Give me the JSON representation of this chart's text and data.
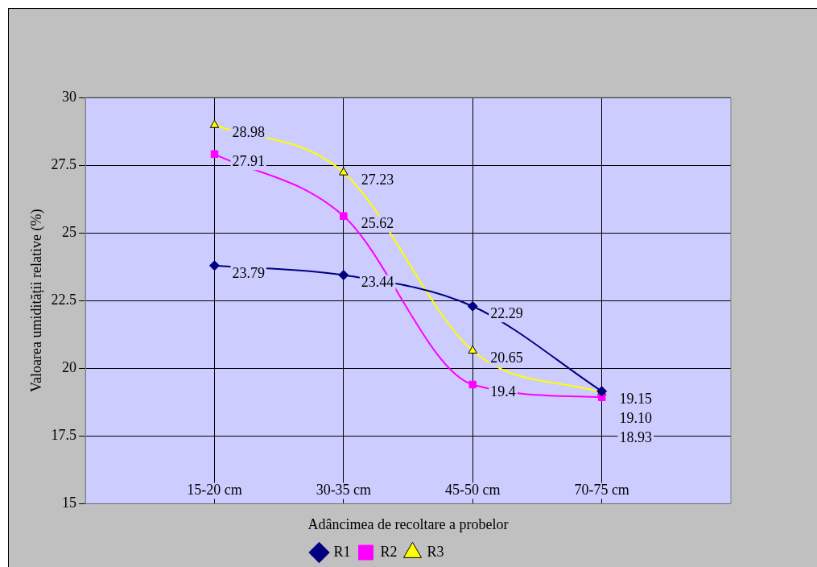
{
  "chart_data": {
    "type": "line",
    "xlabel": "Adâncimea de recoltare a probelor",
    "ylabel": "Valoarea umidității relative (%)",
    "categories": [
      "15-20 cm",
      "30-35 cm",
      "45-50 cm",
      "70-75 cm"
    ],
    "series": [
      {
        "name": "R1",
        "color": "#000080",
        "marker": "diamond",
        "values": [
          23.79,
          23.44,
          22.29,
          19.15
        ],
        "value_labels": [
          "23.79",
          "23.44",
          "22.29",
          "19.15"
        ]
      },
      {
        "name": "R2",
        "color": "#ff00ff",
        "marker": "square",
        "values": [
          27.91,
          25.62,
          19.4,
          18.93
        ],
        "value_labels": [
          "27.91",
          "25.62",
          "19.4",
          "18.93"
        ]
      },
      {
        "name": "R3",
        "color": "#ffff00",
        "marker": "triangle",
        "values": [
          28.98,
          27.23,
          20.65,
          19.1
        ],
        "value_labels": [
          "28.98",
          "27.23",
          "20.65",
          "19.10"
        ]
      }
    ],
    "ylim": [
      15,
      30
    ],
    "yticks": [
      15,
      17.5,
      20,
      22.5,
      25,
      27.5,
      30
    ],
    "grid": true,
    "legend": "bottom"
  }
}
